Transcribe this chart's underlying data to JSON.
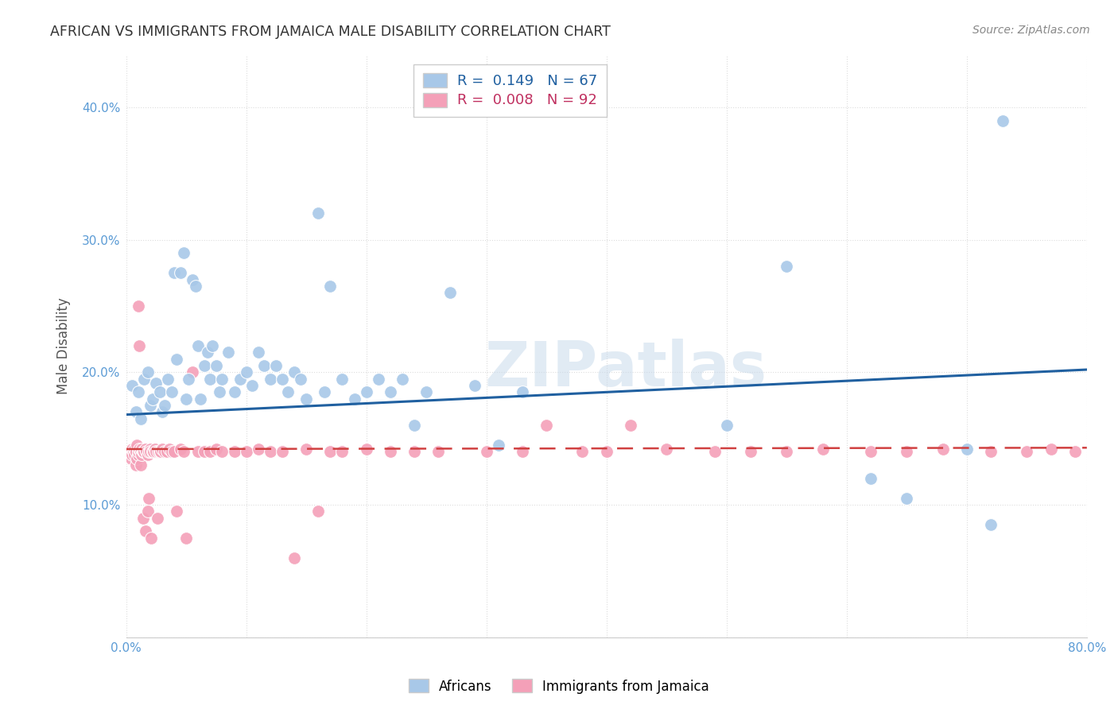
{
  "title": "AFRICAN VS IMMIGRANTS FROM JAMAICA MALE DISABILITY CORRELATION CHART",
  "source": "Source: ZipAtlas.com",
  "ylabel_label": "Male Disability",
  "xlim": [
    0.0,
    0.8
  ],
  "ylim": [
    0.0,
    0.44
  ],
  "xticks": [
    0.0,
    0.1,
    0.2,
    0.3,
    0.4,
    0.5,
    0.6,
    0.7,
    0.8
  ],
  "xticklabels": [
    "0.0%",
    "",
    "",
    "",
    "",
    "",
    "",
    "",
    "80.0%"
  ],
  "yticks": [
    0.0,
    0.1,
    0.2,
    0.3,
    0.4
  ],
  "yticklabels": [
    "",
    "10.0%",
    "20.0%",
    "30.0%",
    "40.0%"
  ],
  "blue_R": "0.149",
  "blue_N": "67",
  "pink_R": "0.008",
  "pink_N": "92",
  "blue_color": "#a8c8e8",
  "pink_color": "#f4a0b8",
  "blue_line_color": "#2060a0",
  "pink_line_color": "#d04040",
  "background_color": "#ffffff",
  "grid_color": "#dddddd",
  "blue_line_x0": 0.0,
  "blue_line_y0": 0.168,
  "blue_line_x1": 0.8,
  "blue_line_y1": 0.202,
  "pink_line_x0": 0.0,
  "pink_line_y0": 0.142,
  "pink_line_x1": 0.8,
  "pink_line_y1": 0.143,
  "africans_scatter_x": [
    0.005,
    0.008,
    0.01,
    0.012,
    0.015,
    0.018,
    0.02,
    0.022,
    0.025,
    0.028,
    0.03,
    0.032,
    0.035,
    0.038,
    0.04,
    0.042,
    0.045,
    0.048,
    0.05,
    0.052,
    0.055,
    0.058,
    0.06,
    0.062,
    0.065,
    0.068,
    0.07,
    0.072,
    0.075,
    0.078,
    0.08,
    0.085,
    0.09,
    0.095,
    0.1,
    0.105,
    0.11,
    0.115,
    0.12,
    0.125,
    0.13,
    0.135,
    0.14,
    0.145,
    0.15,
    0.16,
    0.165,
    0.17,
    0.18,
    0.19,
    0.2,
    0.21,
    0.22,
    0.23,
    0.24,
    0.25,
    0.27,
    0.29,
    0.31,
    0.33,
    0.5,
    0.55,
    0.62,
    0.65,
    0.7,
    0.72,
    0.73
  ],
  "africans_scatter_y": [
    0.19,
    0.17,
    0.185,
    0.165,
    0.195,
    0.2,
    0.175,
    0.18,
    0.192,
    0.185,
    0.17,
    0.175,
    0.195,
    0.185,
    0.275,
    0.21,
    0.275,
    0.29,
    0.18,
    0.195,
    0.27,
    0.265,
    0.22,
    0.18,
    0.205,
    0.215,
    0.195,
    0.22,
    0.205,
    0.185,
    0.195,
    0.215,
    0.185,
    0.195,
    0.2,
    0.19,
    0.215,
    0.205,
    0.195,
    0.205,
    0.195,
    0.185,
    0.2,
    0.195,
    0.18,
    0.32,
    0.185,
    0.265,
    0.195,
    0.18,
    0.185,
    0.195,
    0.185,
    0.195,
    0.16,
    0.185,
    0.26,
    0.19,
    0.145,
    0.185,
    0.16,
    0.28,
    0.12,
    0.105,
    0.142,
    0.085,
    0.39
  ],
  "jamaica_scatter_x": [
    0.003,
    0.004,
    0.005,
    0.005,
    0.006,
    0.006,
    0.007,
    0.007,
    0.008,
    0.008,
    0.009,
    0.009,
    0.01,
    0.01,
    0.01,
    0.01,
    0.011,
    0.011,
    0.012,
    0.012,
    0.013,
    0.013,
    0.014,
    0.014,
    0.015,
    0.015,
    0.016,
    0.016,
    0.017,
    0.018,
    0.018,
    0.019,
    0.019,
    0.02,
    0.02,
    0.021,
    0.022,
    0.023,
    0.024,
    0.025,
    0.026,
    0.027,
    0.028,
    0.029,
    0.03,
    0.032,
    0.034,
    0.036,
    0.038,
    0.04,
    0.042,
    0.045,
    0.048,
    0.05,
    0.055,
    0.06,
    0.065,
    0.07,
    0.075,
    0.08,
    0.09,
    0.1,
    0.11,
    0.12,
    0.13,
    0.14,
    0.15,
    0.16,
    0.17,
    0.18,
    0.2,
    0.22,
    0.24,
    0.26,
    0.3,
    0.33,
    0.35,
    0.38,
    0.4,
    0.42,
    0.45,
    0.49,
    0.52,
    0.55,
    0.58,
    0.62,
    0.65,
    0.68,
    0.72,
    0.75,
    0.77,
    0.79
  ],
  "jamaica_scatter_y": [
    0.14,
    0.135,
    0.142,
    0.138,
    0.14,
    0.14,
    0.142,
    0.138,
    0.14,
    0.13,
    0.145,
    0.135,
    0.14,
    0.138,
    0.25,
    0.14,
    0.142,
    0.22,
    0.14,
    0.13,
    0.138,
    0.142,
    0.14,
    0.09,
    0.14,
    0.14,
    0.142,
    0.08,
    0.14,
    0.095,
    0.138,
    0.105,
    0.14,
    0.142,
    0.14,
    0.075,
    0.14,
    0.14,
    0.142,
    0.14,
    0.09,
    0.14,
    0.14,
    0.14,
    0.142,
    0.14,
    0.14,
    0.142,
    0.14,
    0.14,
    0.095,
    0.142,
    0.14,
    0.075,
    0.2,
    0.14,
    0.14,
    0.14,
    0.142,
    0.14,
    0.14,
    0.14,
    0.142,
    0.14,
    0.14,
    0.06,
    0.142,
    0.095,
    0.14,
    0.14,
    0.142,
    0.14,
    0.14,
    0.14,
    0.14,
    0.14,
    0.16,
    0.14,
    0.14,
    0.16,
    0.142,
    0.14,
    0.14,
    0.14,
    0.142,
    0.14,
    0.14,
    0.142,
    0.14,
    0.14,
    0.142,
    0.14
  ]
}
